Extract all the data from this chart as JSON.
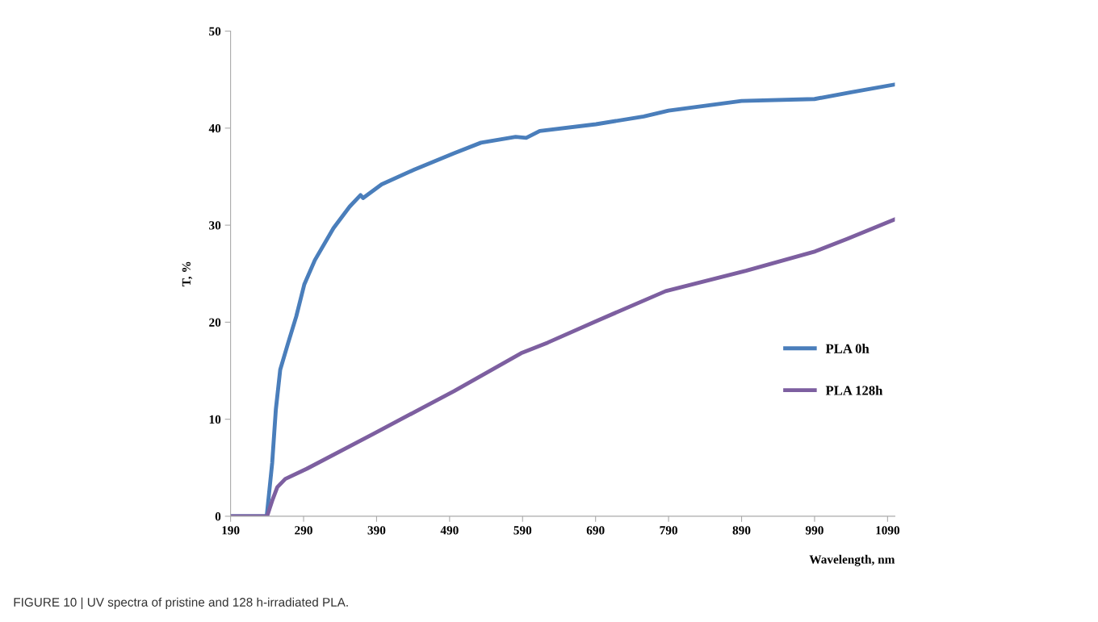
{
  "chart_data": {
    "type": "line",
    "xlabel": "Wavelength, nm",
    "ylabel": "T, %",
    "annotations": [
      "FIGURE 10 | UV spectra of pristine and 128 h-irradiated PLA."
    ],
    "xlim": [
      190,
      1100
    ],
    "xticks": [
      190,
      290,
      390,
      490,
      590,
      690,
      790,
      890,
      990,
      1090
    ],
    "ylim": [
      0,
      50
    ],
    "yticks": [
      0,
      10,
      20,
      30,
      40,
      50
    ],
    "grid": false,
    "legend": "right",
    "marker": "none",
    "line_style": "solid",
    "series": [
      {
        "name": "PLA 0h",
        "color": "#4a7ebb",
        "x": [
          190,
          239.5,
          247,
          252,
          258,
          269,
          280,
          291,
          305.5,
          331,
          353,
          368,
          371.5,
          397,
          441,
          496,
          533,
          580.5,
          595,
          613.5,
          690.5,
          756,
          790,
          890,
          990,
          1040,
          1100
        ],
        "values": [
          0,
          0,
          5.5,
          11,
          15.1,
          17.9,
          20.6,
          23.9,
          26.4,
          29.7,
          31.9,
          33.1,
          32.8,
          34.2,
          35.7,
          37.4,
          38.5,
          39.1,
          39.0,
          39.7,
          40.4,
          41.2,
          41.8,
          42.8,
          43.0,
          43.7,
          44.5
        ]
      },
      {
        "name": "PLA 128h",
        "color": "#7d5fa0",
        "x": [
          190,
          240,
          247,
          254,
          265,
          294.5,
          386,
          496,
          588,
          624.5,
          690.5,
          786,
          896,
          991,
          1035,
          1100
        ],
        "values": [
          0,
          0,
          1.6,
          3.0,
          3.85,
          4.9,
          8.5,
          12.9,
          16.8,
          17.9,
          20.1,
          23.2,
          25.3,
          27.3,
          28.6,
          30.6
        ]
      }
    ]
  }
}
